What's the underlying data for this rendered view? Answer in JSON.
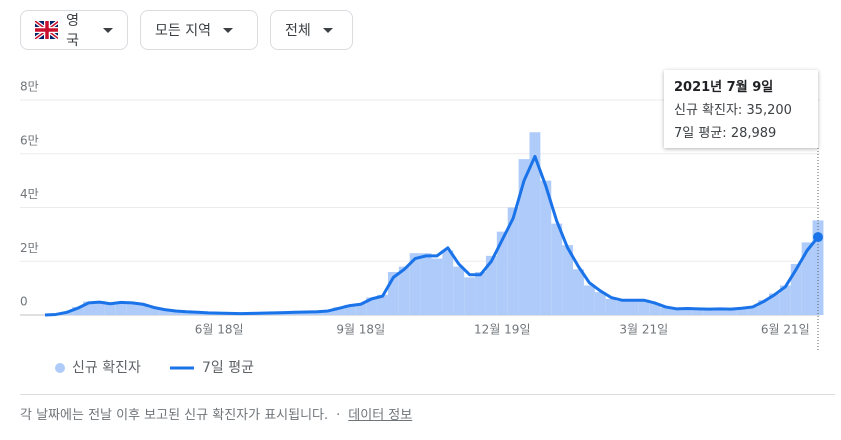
{
  "filters": [
    "영국",
    "모든 지역",
    "전체"
  ],
  "chart_data": {
    "type": "bar",
    "categories": [
      null,
      null,
      null,
      null,
      null,
      null,
      null,
      null,
      null,
      null,
      null,
      null,
      null,
      null,
      null,
      null,
      "6월 18일",
      null,
      null,
      null,
      null,
      null,
      null,
      null,
      null,
      null,
      null,
      null,
      null,
      "9월 18일",
      null,
      null,
      null,
      null,
      null,
      null,
      null,
      null,
      null,
      null,
      null,
      null,
      "12월 19일",
      null,
      null,
      null,
      null,
      null,
      null,
      null,
      null,
      null,
      null,
      null,
      null,
      "3월 21일",
      null,
      null,
      null,
      null,
      null,
      null,
      null,
      null,
      null,
      null,
      null,
      null,
      "6월 21일",
      null,
      null,
      null
    ],
    "series": [
      {
        "name": "신규 확진자",
        "type": "bar",
        "color": "#aecbfa",
        "values": [
          0,
          300,
          1200,
          3000,
          5000,
          5200,
          4000,
          5000,
          4300,
          3800,
          2600,
          1900,
          1400,
          1100,
          1000,
          800,
          700,
          600,
          500,
          650,
          750,
          850,
          950,
          1050,
          1200,
          1300,
          1800,
          2900,
          3800,
          4300,
          6500,
          7500,
          16000,
          18000,
          23000,
          23000,
          21000,
          24000,
          18000,
          14000,
          16000,
          22000,
          31000,
          40000,
          58000,
          68000,
          50000,
          34000,
          26000,
          17000,
          11000,
          8500,
          6000,
          5200,
          5600,
          5700,
          4400,
          2800,
          2200,
          2600,
          2400,
          2000,
          2400,
          2100,
          2600,
          3200,
          5500,
          8000,
          11000,
          19000,
          27000,
          35200
        ]
      },
      {
        "name": "7일 평균",
        "type": "line",
        "color": "#1a73e8",
        "values": [
          0,
          200,
          1000,
          2500,
          4500,
          4800,
          4200,
          4700,
          4500,
          4000,
          2800,
          2000,
          1500,
          1200,
          1000,
          800,
          700,
          600,
          500,
          600,
          700,
          800,
          900,
          1000,
          1100,
          1200,
          1500,
          2500,
          3500,
          4000,
          6000,
          7000,
          14000,
          17000,
          21000,
          22000,
          22000,
          25000,
          19000,
          15000,
          15000,
          20000,
          28000,
          36000,
          50000,
          59000,
          48000,
          35000,
          25000,
          18000,
          12000,
          9000,
          6500,
          5500,
          5500,
          5500,
          4500,
          3000,
          2300,
          2400,
          2300,
          2200,
          2300,
          2200,
          2500,
          3000,
          5000,
          7500,
          10500,
          17000,
          24000,
          28989
        ]
      }
    ],
    "ylim": [
      0,
      80000
    ],
    "yticks": [
      0,
      {
        "value": 20000,
        "label": "2만"
      },
      {
        "value": 40000,
        "label": "4만"
      },
      {
        "value": 60000,
        "label": "6만"
      },
      {
        "value": 80000,
        "label": "8만"
      }
    ],
    "grid": true,
    "tooltip": {
      "title": "2021년 7월 9일",
      "items": [
        {
          "label": "신규 확진자:",
          "value": "35,200"
        },
        {
          "label": "7일 평균:",
          "value": "28,989"
        }
      ]
    }
  },
  "footer": {
    "note": "각 날짜에는 전날 이후 보고된 신규 확진자가 표시됩니다.",
    "separator": "·",
    "link": "데이터 정보"
  }
}
